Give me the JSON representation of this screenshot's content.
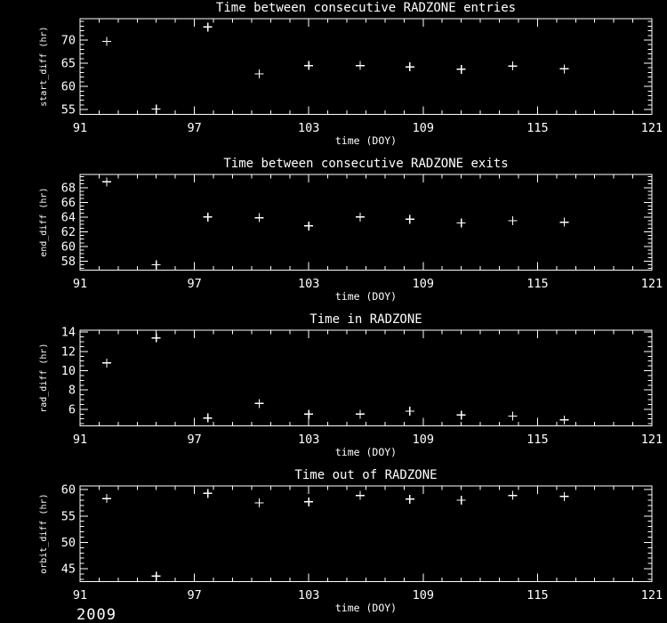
{
  "page": {
    "background": "#000000",
    "foreground": "#ffffff",
    "year_label": "2009"
  },
  "chart_data": [
    {
      "type": "scatter",
      "title": "Time between consecutive RADZONE entries",
      "xlabel": "time (DOY)",
      "ylabel": "start_diff (hr)",
      "marker": "plus",
      "legend": "none",
      "grid": false,
      "xlim": [
        91,
        121
      ],
      "ylim": [
        54.0,
        74.6
      ],
      "xticks": [
        91,
        97,
        103,
        109,
        115,
        121
      ],
      "yticks": [
        55,
        60,
        65,
        70
      ],
      "x_minor_step": 1,
      "y_minor_step": 1,
      "x": [
        92.4,
        95.0,
        97.7,
        100.4,
        103.0,
        105.7,
        108.3,
        111.0,
        113.7,
        116.4
      ],
      "y": [
        69.7,
        55.1,
        72.8,
        62.7,
        64.5,
        64.5,
        64.2,
        63.7,
        64.4,
        63.8
      ]
    },
    {
      "type": "scatter",
      "title": "Time between consecutive RADZONE exits",
      "xlabel": "time (DOY)",
      "ylabel": "end_diff (hr)",
      "marker": "plus",
      "legend": "none",
      "grid": false,
      "xlim": [
        91,
        121
      ],
      "ylim": [
        56.8,
        69.8
      ],
      "xticks": [
        91,
        97,
        103,
        109,
        115,
        121
      ],
      "yticks": [
        58,
        60,
        62,
        64,
        66,
        68
      ],
      "x_minor_step": 1,
      "y_minor_step": 0.5,
      "x": [
        92.4,
        95.0,
        97.7,
        100.4,
        103.0,
        105.7,
        108.3,
        111.0,
        113.7,
        116.4
      ],
      "y": [
        68.8,
        57.5,
        64.0,
        63.9,
        62.8,
        64.0,
        63.7,
        63.2,
        63.5,
        63.3
      ]
    },
    {
      "type": "scatter",
      "title": "Time in RADZONE",
      "xlabel": "time (DOY)",
      "ylabel": "rad_diff (hr)",
      "marker": "plus",
      "legend": "none",
      "grid": false,
      "xlim": [
        91,
        121
      ],
      "ylim": [
        4.3,
        14.2
      ],
      "xticks": [
        91,
        97,
        103,
        109,
        115,
        121
      ],
      "yticks": [
        6,
        8,
        10,
        12,
        14
      ],
      "x_minor_step": 1,
      "y_minor_step": 0.5,
      "x": [
        92.4,
        95.0,
        97.7,
        100.4,
        103.0,
        105.7,
        108.3,
        111.0,
        113.7,
        116.4
      ],
      "y": [
        10.8,
        13.4,
        5.1,
        6.6,
        5.5,
        5.5,
        5.8,
        5.4,
        5.3,
        4.9
      ]
    },
    {
      "type": "scatter",
      "title": "Time out of RADZONE",
      "xlabel": "time (DOY)",
      "ylabel": "orbit_diff (hr)",
      "marker": "plus",
      "legend": "none",
      "grid": false,
      "xlim": [
        91,
        121
      ],
      "ylim": [
        42.6,
        60.7
      ],
      "xticks": [
        91,
        97,
        103,
        109,
        115,
        121
      ],
      "yticks": [
        45,
        50,
        55,
        60
      ],
      "x_minor_step": 1,
      "y_minor_step": 1,
      "x": [
        92.4,
        95.0,
        97.7,
        100.4,
        103.0,
        105.7,
        108.3,
        111.0,
        113.7,
        116.4
      ],
      "y": [
        58.3,
        43.6,
        59.3,
        57.5,
        57.7,
        58.9,
        58.2,
        58.0,
        58.9,
        58.7
      ]
    }
  ]
}
